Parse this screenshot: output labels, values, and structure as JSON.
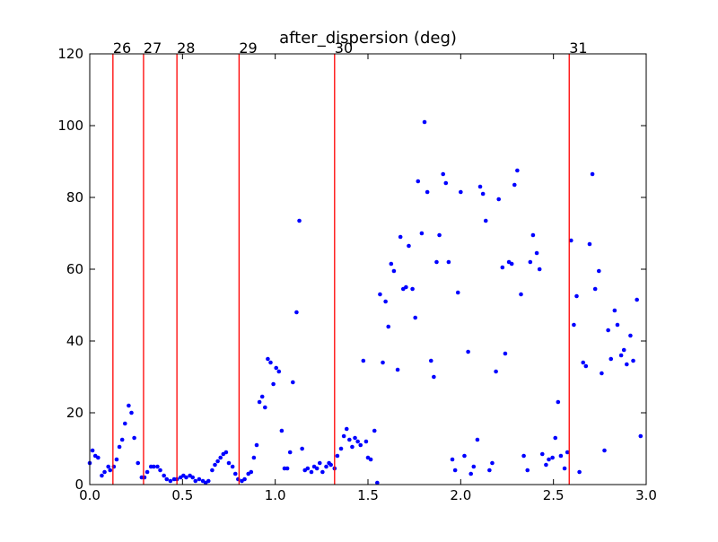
{
  "chart_data": {
    "type": "scatter",
    "title": "after_dispersion (deg)",
    "xlabel": "",
    "ylabel": "",
    "xlim": [
      0.0,
      3.0
    ],
    "ylim": [
      0,
      120
    ],
    "x_ticks": [
      0.0,
      0.5,
      1.0,
      1.5,
      2.0,
      2.5,
      3.0
    ],
    "x_tick_labels": [
      "0.0",
      "0.5",
      "1.0",
      "1.5",
      "2.0",
      "2.5",
      "3.0"
    ],
    "y_ticks": [
      0,
      20,
      40,
      60,
      80,
      100,
      120
    ],
    "y_tick_labels": [
      "0",
      "20",
      "40",
      "60",
      "80",
      "100",
      "120"
    ],
    "grid": false,
    "legend": "none",
    "colors": {
      "points": "#0000ff",
      "markers": "#ff0000"
    },
    "vertical_markers": [
      {
        "x": 0.125,
        "label": "26"
      },
      {
        "x": 0.29,
        "label": "27"
      },
      {
        "x": 0.47,
        "label": "28"
      },
      {
        "x": 0.805,
        "label": "29"
      },
      {
        "x": 1.32,
        "label": "30"
      },
      {
        "x": 2.585,
        "label": "31"
      }
    ],
    "series": [
      {
        "points": [
          [
            0.0,
            6
          ],
          [
            0.015,
            9.5
          ],
          [
            0.03,
            8
          ],
          [
            0.045,
            7.5
          ],
          [
            0.065,
            2.5
          ],
          [
            0.08,
            3.5
          ],
          [
            0.1,
            5
          ],
          [
            0.11,
            4
          ],
          [
            0.13,
            5
          ],
          [
            0.145,
            7
          ],
          [
            0.16,
            10.5
          ],
          [
            0.175,
            12.5
          ],
          [
            0.19,
            17
          ],
          [
            0.21,
            22
          ],
          [
            0.225,
            20
          ],
          [
            0.24,
            13
          ],
          [
            0.26,
            6
          ],
          [
            0.28,
            2
          ],
          [
            0.295,
            2
          ],
          [
            0.31,
            3.5
          ],
          [
            0.33,
            5
          ],
          [
            0.345,
            5
          ],
          [
            0.365,
            5
          ],
          [
            0.38,
            4
          ],
          [
            0.4,
            2.5
          ],
          [
            0.415,
            1.5
          ],
          [
            0.435,
            1
          ],
          [
            0.455,
            1.5
          ],
          [
            0.47,
            1.5
          ],
          [
            0.49,
            2
          ],
          [
            0.505,
            2.5
          ],
          [
            0.52,
            2
          ],
          [
            0.54,
            2.5
          ],
          [
            0.555,
            2
          ],
          [
            0.57,
            1
          ],
          [
            0.59,
            1.5
          ],
          [
            0.61,
            1
          ],
          [
            0.625,
            0.5
          ],
          [
            0.64,
            1
          ],
          [
            0.66,
            4
          ],
          [
            0.675,
            5.5
          ],
          [
            0.69,
            6.5
          ],
          [
            0.705,
            7.5
          ],
          [
            0.72,
            8.5
          ],
          [
            0.735,
            9
          ],
          [
            0.75,
            6
          ],
          [
            0.77,
            5
          ],
          [
            0.785,
            3
          ],
          [
            0.8,
            1.5
          ],
          [
            0.82,
            1
          ],
          [
            0.835,
            1.5
          ],
          [
            0.855,
            3
          ],
          [
            0.87,
            3.5
          ],
          [
            0.885,
            7.5
          ],
          [
            0.9,
            11
          ],
          [
            0.915,
            23
          ],
          [
            0.93,
            24.5
          ],
          [
            0.945,
            21.5
          ],
          [
            0.96,
            35
          ],
          [
            0.975,
            34
          ],
          [
            0.99,
            28
          ],
          [
            1.005,
            32.5
          ],
          [
            1.02,
            31.5
          ],
          [
            1.035,
            15
          ],
          [
            1.05,
            4.5
          ],
          [
            1.065,
            4.5
          ],
          [
            1.08,
            9
          ],
          [
            1.095,
            28.5
          ],
          [
            1.115,
            48
          ],
          [
            1.13,
            73.5
          ],
          [
            1.145,
            10
          ],
          [
            1.16,
            4
          ],
          [
            1.175,
            4.5
          ],
          [
            1.195,
            3.5
          ],
          [
            1.21,
            5
          ],
          [
            1.225,
            4.5
          ],
          [
            1.24,
            6
          ],
          [
            1.255,
            3.5
          ],
          [
            1.275,
            5
          ],
          [
            1.29,
            6
          ],
          [
            1.3,
            5.5
          ],
          [
            1.32,
            4.5
          ],
          [
            1.335,
            8
          ],
          [
            1.355,
            10
          ],
          [
            1.37,
            13.5
          ],
          [
            1.385,
            15.5
          ],
          [
            1.4,
            12.5
          ],
          [
            1.415,
            10.5
          ],
          [
            1.43,
            13
          ],
          [
            1.445,
            12
          ],
          [
            1.46,
            11
          ],
          [
            1.475,
            34.5
          ],
          [
            1.49,
            12
          ],
          [
            1.5,
            7.5
          ],
          [
            1.515,
            7
          ],
          [
            1.535,
            15
          ],
          [
            1.55,
            0.5
          ],
          [
            1.565,
            53
          ],
          [
            1.58,
            34
          ],
          [
            1.595,
            51
          ],
          [
            1.61,
            44
          ],
          [
            1.625,
            61.5
          ],
          [
            1.64,
            59.5
          ],
          [
            1.66,
            32
          ],
          [
            1.675,
            69
          ],
          [
            1.69,
            54.5
          ],
          [
            1.705,
            55
          ],
          [
            1.72,
            66.5
          ],
          [
            1.74,
            54.5
          ],
          [
            1.755,
            46.5
          ],
          [
            1.77,
            84.5
          ],
          [
            1.79,
            70
          ],
          [
            1.805,
            101
          ],
          [
            1.82,
            81.5
          ],
          [
            1.84,
            34.5
          ],
          [
            1.855,
            30
          ],
          [
            1.87,
            62
          ],
          [
            1.885,
            69.5
          ],
          [
            1.905,
            86.5
          ],
          [
            1.92,
            84
          ],
          [
            1.935,
            62
          ],
          [
            1.955,
            7
          ],
          [
            1.97,
            4
          ],
          [
            1.985,
            53.5
          ],
          [
            2.0,
            81.5
          ],
          [
            2.02,
            8
          ],
          [
            2.04,
            37
          ],
          [
            2.055,
            3
          ],
          [
            2.07,
            5
          ],
          [
            2.09,
            12.5
          ],
          [
            2.105,
            83
          ],
          [
            2.12,
            81
          ],
          [
            2.135,
            73.5
          ],
          [
            2.155,
            4
          ],
          [
            2.17,
            6
          ],
          [
            2.19,
            31.5
          ],
          [
            2.205,
            79.5
          ],
          [
            2.225,
            60.5
          ],
          [
            2.24,
            36.5
          ],
          [
            2.26,
            62
          ],
          [
            2.275,
            61.5
          ],
          [
            2.29,
            83.5
          ],
          [
            2.305,
            87.5
          ],
          [
            2.325,
            53
          ],
          [
            2.34,
            8
          ],
          [
            2.36,
            4
          ],
          [
            2.375,
            62
          ],
          [
            2.39,
            69.5
          ],
          [
            2.41,
            64.5
          ],
          [
            2.425,
            60
          ],
          [
            2.44,
            8.5
          ],
          [
            2.46,
            5.5
          ],
          [
            2.475,
            7
          ],
          [
            2.495,
            7.5
          ],
          [
            2.51,
            13
          ],
          [
            2.525,
            23
          ],
          [
            2.54,
            8
          ],
          [
            2.56,
            4.5
          ],
          [
            2.575,
            9
          ],
          [
            2.595,
            68
          ],
          [
            2.61,
            44.5
          ],
          [
            2.625,
            52.5
          ],
          [
            2.64,
            3.5
          ],
          [
            2.66,
            34
          ],
          [
            2.675,
            33
          ],
          [
            2.695,
            67
          ],
          [
            2.71,
            86.5
          ],
          [
            2.725,
            54.5
          ],
          [
            2.745,
            59.5
          ],
          [
            2.76,
            31
          ],
          [
            2.775,
            9.5
          ],
          [
            2.795,
            43
          ],
          [
            2.81,
            35
          ],
          [
            2.83,
            48.5
          ],
          [
            2.845,
            44.5
          ],
          [
            2.865,
            36
          ],
          [
            2.88,
            37.5
          ],
          [
            2.895,
            33.5
          ],
          [
            2.915,
            41.5
          ],
          [
            2.93,
            34.5
          ],
          [
            2.95,
            51.5
          ],
          [
            2.97,
            13.5
          ]
        ]
      }
    ]
  }
}
